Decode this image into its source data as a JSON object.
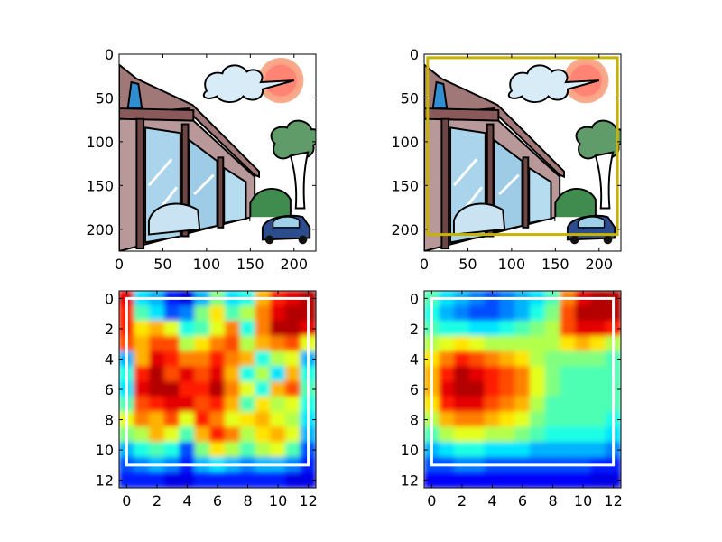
{
  "chart_data": [
    {
      "type": "image",
      "content": "cartoon illustration of a building with glass windows, a parked car, a tree, a cloud and a sun",
      "xticks": [
        "0",
        "50",
        "100",
        "150",
        "200"
      ],
      "yticks": [
        "0",
        "50",
        "100",
        "150",
        "200"
      ],
      "xlim": [
        0,
        225
      ],
      "ylim": [
        225,
        0
      ]
    },
    {
      "type": "image",
      "content": "same cartoon illustration with a yellow bounding box",
      "xticks": [
        "0",
        "50",
        "100",
        "150",
        "200"
      ],
      "yticks": [
        "0",
        "50",
        "100",
        "150",
        "200"
      ],
      "xlim": [
        0,
        225
      ],
      "ylim": [
        225,
        0
      ],
      "box": {
        "x0": 4,
        "y0": 4,
        "x1": 221,
        "y1": 206,
        "color": "#c8b400"
      }
    },
    {
      "type": "heatmap",
      "colormap": "jet",
      "interpolation": "bilinear",
      "xticks": [
        "0",
        "2",
        "4",
        "6",
        "8",
        "10",
        "12"
      ],
      "yticks": [
        "0",
        "2",
        "4",
        "6",
        "8",
        "10",
        "12"
      ],
      "xlim": [
        -0.5,
        12.5
      ],
      "ylim": [
        12.5,
        -0.5
      ],
      "box": {
        "x0": 0,
        "y0": 0,
        "x1": 12,
        "y1": 11,
        "color": "#ffffff"
      },
      "values": [
        [
          0.9,
          0.35,
          0.3,
          0.15,
          0.1,
          0.3,
          0.5,
          0.35,
          0.4,
          0.7,
          0.85,
          0.9,
          0.95
        ],
        [
          0.85,
          0.45,
          0.35,
          0.2,
          0.25,
          0.5,
          0.65,
          0.45,
          0.55,
          0.75,
          0.9,
          0.95,
          0.95
        ],
        [
          0.85,
          0.65,
          0.7,
          0.6,
          0.4,
          0.45,
          0.6,
          0.75,
          0.4,
          0.75,
          0.95,
          0.95,
          0.9
        ],
        [
          0.8,
          0.7,
          0.8,
          0.8,
          0.55,
          0.65,
          0.75,
          0.8,
          0.55,
          0.7,
          0.75,
          0.8,
          0.6
        ],
        [
          0.3,
          0.7,
          0.9,
          0.85,
          0.75,
          0.75,
          0.85,
          0.75,
          0.7,
          0.4,
          0.55,
          0.6,
          0.3
        ],
        [
          0.4,
          0.85,
          0.95,
          0.8,
          0.9,
          0.8,
          0.9,
          0.7,
          0.4,
          0.55,
          0.35,
          0.7,
          0.4
        ],
        [
          0.35,
          0.9,
          0.95,
          0.95,
          0.85,
          0.85,
          0.95,
          0.75,
          0.6,
          0.4,
          0.7,
          0.8,
          0.45
        ],
        [
          0.45,
          0.8,
          0.85,
          0.9,
          0.9,
          0.8,
          0.85,
          0.7,
          0.45,
          0.65,
          0.55,
          0.6,
          0.4
        ],
        [
          0.6,
          0.75,
          0.7,
          0.8,
          0.6,
          0.85,
          0.75,
          0.6,
          0.65,
          0.7,
          0.6,
          0.55,
          0.35
        ],
        [
          0.5,
          0.55,
          0.7,
          0.6,
          0.45,
          0.7,
          0.85,
          0.75,
          0.55,
          0.65,
          0.7,
          0.6,
          0.3
        ],
        [
          0.3,
          0.4,
          0.45,
          0.4,
          0.2,
          0.5,
          0.65,
          0.55,
          0.45,
          0.55,
          0.6,
          0.45,
          0.2
        ],
        [
          0.2,
          0.25,
          0.3,
          0.25,
          0.15,
          0.3,
          0.35,
          0.3,
          0.25,
          0.3,
          0.3,
          0.25,
          0.15
        ],
        [
          0.15,
          0.15,
          0.15,
          0.1,
          0.1,
          0.15,
          0.15,
          0.15,
          0.15,
          0.15,
          0.15,
          0.1,
          0.1
        ]
      ]
    },
    {
      "type": "heatmap",
      "colormap": "jet",
      "interpolation": "bilinear",
      "xticks": [
        "0",
        "2",
        "4",
        "6",
        "8",
        "10",
        "12"
      ],
      "yticks": [
        "0",
        "2",
        "4",
        "6",
        "8",
        "10",
        "12"
      ],
      "xlim": [
        -0.5,
        12.5
      ],
      "ylim": [
        12.5,
        -0.5
      ],
      "box": {
        "x0": 0,
        "y0": 0,
        "x1": 12,
        "y1": 11,
        "color": "#ffffff"
      },
      "values": [
        [
          0.45,
          0.35,
          0.3,
          0.25,
          0.2,
          0.25,
          0.3,
          0.35,
          0.45,
          0.75,
          0.9,
          0.95,
          0.95
        ],
        [
          0.4,
          0.3,
          0.25,
          0.2,
          0.2,
          0.25,
          0.3,
          0.4,
          0.5,
          0.8,
          0.95,
          0.95,
          0.95
        ],
        [
          0.45,
          0.4,
          0.4,
          0.35,
          0.35,
          0.4,
          0.45,
          0.5,
          0.55,
          0.8,
          0.9,
          0.9,
          0.85
        ],
        [
          0.55,
          0.6,
          0.65,
          0.6,
          0.55,
          0.55,
          0.55,
          0.55,
          0.55,
          0.65,
          0.7,
          0.65,
          0.55
        ],
        [
          0.65,
          0.75,
          0.85,
          0.8,
          0.75,
          0.7,
          0.65,
          0.55,
          0.5,
          0.5,
          0.5,
          0.5,
          0.45
        ],
        [
          0.7,
          0.85,
          0.95,
          0.9,
          0.85,
          0.8,
          0.75,
          0.6,
          0.5,
          0.45,
          0.45,
          0.45,
          0.45
        ],
        [
          0.7,
          0.9,
          0.95,
          0.95,
          0.85,
          0.8,
          0.75,
          0.6,
          0.5,
          0.45,
          0.45,
          0.45,
          0.45
        ],
        [
          0.65,
          0.85,
          0.9,
          0.9,
          0.8,
          0.75,
          0.7,
          0.55,
          0.45,
          0.45,
          0.45,
          0.45,
          0.45
        ],
        [
          0.55,
          0.7,
          0.75,
          0.75,
          0.7,
          0.65,
          0.6,
          0.5,
          0.45,
          0.45,
          0.45,
          0.45,
          0.4
        ],
        [
          0.45,
          0.55,
          0.6,
          0.6,
          0.55,
          0.55,
          0.5,
          0.45,
          0.4,
          0.4,
          0.4,
          0.4,
          0.35
        ],
        [
          0.3,
          0.35,
          0.4,
          0.4,
          0.35,
          0.35,
          0.35,
          0.3,
          0.3,
          0.3,
          0.3,
          0.3,
          0.25
        ],
        [
          0.2,
          0.2,
          0.25,
          0.25,
          0.2,
          0.2,
          0.2,
          0.2,
          0.2,
          0.2,
          0.2,
          0.15,
          0.15
        ],
        [
          0.12,
          0.12,
          0.12,
          0.12,
          0.12,
          0.12,
          0.12,
          0.12,
          0.12,
          0.12,
          0.12,
          0.1,
          0.1
        ]
      ]
    }
  ]
}
